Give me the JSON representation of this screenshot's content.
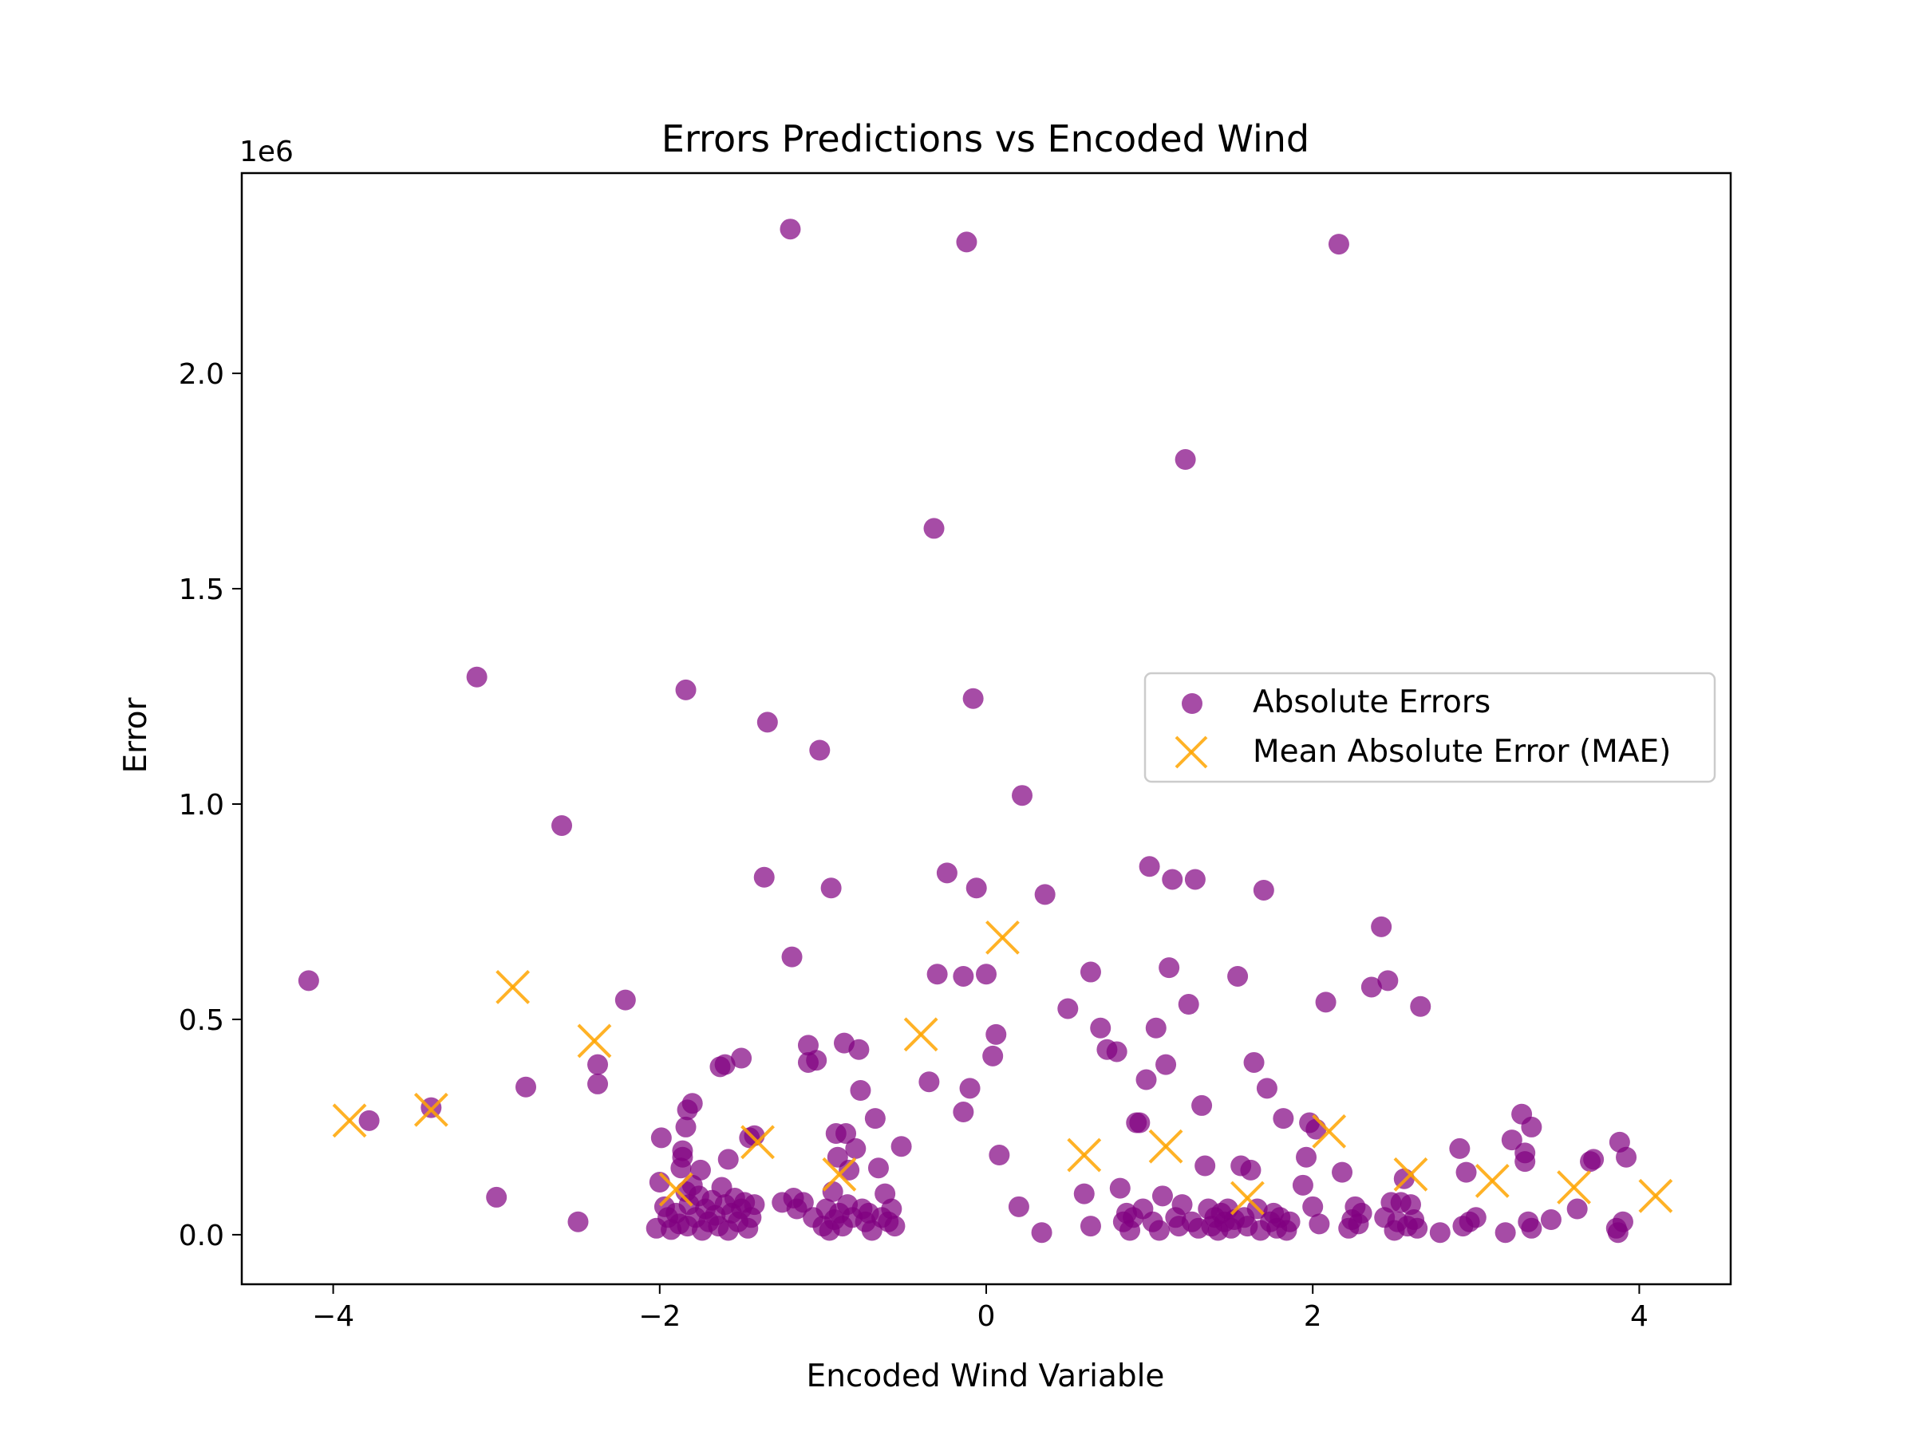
{
  "chart_data": {
    "type": "scatter",
    "title": "Errors Predictions vs Encoded Wind",
    "xlabel": "Encoded Wind Variable",
    "ylabel": "Error",
    "y_offset_label": "1e6",
    "xlim": [
      -4.56,
      4.56
    ],
    "ylim": [
      -0.115,
      2.465
    ],
    "x_ticks": [
      -4,
      -2,
      0,
      2,
      4
    ],
    "x_tick_labels": [
      "−4",
      "−2",
      "0",
      "2",
      "4"
    ],
    "y_ticks": [
      0.0,
      0.5,
      1.0,
      1.5,
      2.0
    ],
    "y_tick_labels": [
      "0.0",
      "0.5",
      "1.0",
      "1.5",
      "2.0"
    ],
    "grid": false,
    "legend_position": "center-right",
    "colors": {
      "absolute": "#800080",
      "mae": "#ffa500"
    },
    "series": [
      {
        "name": "Absolute Errors",
        "marker": "circle",
        "points": [
          [
            -4.15,
            0.59
          ],
          [
            -3.78,
            0.265
          ],
          [
            -3.4,
            0.295
          ],
          [
            -3.12,
            1.295
          ],
          [
            -3.0,
            0.087
          ],
          [
            -2.82,
            0.343
          ],
          [
            -2.6,
            0.95
          ],
          [
            -2.5,
            0.03
          ],
          [
            -2.38,
            0.395
          ],
          [
            -2.38,
            0.35
          ],
          [
            -2.21,
            0.545
          ],
          [
            -2.02,
            0.015
          ],
          [
            -2.0,
            0.122
          ],
          [
            -1.99,
            0.225
          ],
          [
            -1.97,
            0.065
          ],
          [
            -1.95,
            0.04
          ],
          [
            -1.93,
            0.012
          ],
          [
            -1.9,
            0.05
          ],
          [
            -1.88,
            0.025
          ],
          [
            -1.87,
            0.155
          ],
          [
            -1.86,
            0.195
          ],
          [
            -1.86,
            0.18
          ],
          [
            -1.84,
            0.1
          ],
          [
            -1.83,
            0.02
          ],
          [
            -1.82,
            0.07
          ],
          [
            -1.8,
            0.115
          ],
          [
            -1.78,
            0.04
          ],
          [
            -1.76,
            0.09
          ],
          [
            -1.74,
            0.01
          ],
          [
            -1.72,
            0.06
          ],
          [
            -1.7,
            0.03
          ],
          [
            -1.68,
            0.08
          ],
          [
            -1.66,
            0.045
          ],
          [
            -1.64,
            0.02
          ],
          [
            -1.62,
            0.11
          ],
          [
            -1.6,
            0.07
          ],
          [
            -1.58,
            0.01
          ],
          [
            -1.56,
            0.05
          ],
          [
            -1.54,
            0.085
          ],
          [
            -1.52,
            0.03
          ],
          [
            -1.5,
            0.06
          ],
          [
            -1.48,
            0.075
          ],
          [
            -1.46,
            0.015
          ],
          [
            -1.44,
            0.04
          ],
          [
            -1.42,
            0.07
          ],
          [
            -1.84,
            1.265
          ],
          [
            -1.84,
            0.25
          ],
          [
            -1.83,
            0.29
          ],
          [
            -1.8,
            0.305
          ],
          [
            -1.75,
            0.15
          ],
          [
            -1.63,
            0.39
          ],
          [
            -1.6,
            0.395
          ],
          [
            -1.58,
            0.175
          ],
          [
            -1.5,
            0.41
          ],
          [
            -1.45,
            0.225
          ],
          [
            -1.42,
            0.23
          ],
          [
            -1.36,
            0.83
          ],
          [
            -1.34,
            1.19
          ],
          [
            -1.25,
            0.075
          ],
          [
            -1.2,
            2.335
          ],
          [
            -1.19,
            0.645
          ],
          [
            -1.18,
            0.085
          ],
          [
            -1.16,
            0.06
          ],
          [
            -1.12,
            0.075
          ],
          [
            -1.09,
            0.44
          ],
          [
            -1.09,
            0.4
          ],
          [
            -1.06,
            0.04
          ],
          [
            -1.04,
            0.405
          ],
          [
            -1.02,
            1.125
          ],
          [
            -1.0,
            0.02
          ],
          [
            -0.98,
            0.06
          ],
          [
            -0.96,
            0.01
          ],
          [
            -0.95,
            0.805
          ],
          [
            -0.94,
            0.1
          ],
          [
            -0.93,
            0.035
          ],
          [
            -0.92,
            0.235
          ],
          [
            -0.91,
            0.18
          ],
          [
            -0.9,
            0.05
          ],
          [
            -0.88,
            0.02
          ],
          [
            -0.87,
            0.445
          ],
          [
            -0.86,
            0.235
          ],
          [
            -0.85,
            0.07
          ],
          [
            -0.84,
            0.15
          ],
          [
            -0.82,
            0.04
          ],
          [
            -0.8,
            0.2
          ],
          [
            -0.78,
            0.43
          ],
          [
            -0.77,
            0.335
          ],
          [
            -0.76,
            0.06
          ],
          [
            -0.74,
            0.03
          ],
          [
            -0.72,
            0.05
          ],
          [
            -0.7,
            0.01
          ],
          [
            -0.68,
            0.27
          ],
          [
            -0.66,
            0.155
          ],
          [
            -0.64,
            0.04
          ],
          [
            -0.62,
            0.095
          ],
          [
            -0.6,
            0.03
          ],
          [
            -0.58,
            0.06
          ],
          [
            -0.56,
            0.02
          ],
          [
            -0.52,
            0.205
          ],
          [
            -0.35,
            0.355
          ],
          [
            -0.32,
            1.64
          ],
          [
            -0.3,
            0.605
          ],
          [
            -0.24,
            0.84
          ],
          [
            -0.14,
            0.6
          ],
          [
            -0.14,
            0.285
          ],
          [
            -0.12,
            2.305
          ],
          [
            -0.1,
            0.34
          ],
          [
            -0.08,
            1.245
          ],
          [
            -0.06,
            0.805
          ],
          [
            0.0,
            0.605
          ],
          [
            0.04,
            0.415
          ],
          [
            0.06,
            0.465
          ],
          [
            0.08,
            0.185
          ],
          [
            0.2,
            0.065
          ],
          [
            0.22,
            1.02
          ],
          [
            0.34,
            0.005
          ],
          [
            0.36,
            0.79
          ],
          [
            0.5,
            0.525
          ],
          [
            0.6,
            0.095
          ],
          [
            0.64,
            0.61
          ],
          [
            0.64,
            0.02
          ],
          [
            0.7,
            0.48
          ],
          [
            0.74,
            0.43
          ],
          [
            0.8,
            0.425
          ],
          [
            0.82,
            0.108
          ],
          [
            0.84,
            0.03
          ],
          [
            0.86,
            0.05
          ],
          [
            0.88,
            0.01
          ],
          [
            0.9,
            0.04
          ],
          [
            0.92,
            0.26
          ],
          [
            0.94,
            0.26
          ],
          [
            0.96,
            0.06
          ],
          [
            0.98,
            0.36
          ],
          [
            1.0,
            0.855
          ],
          [
            1.02,
            0.03
          ],
          [
            1.04,
            0.48
          ],
          [
            1.06,
            0.01
          ],
          [
            1.08,
            0.09
          ],
          [
            1.1,
            0.395
          ],
          [
            1.12,
            0.62
          ],
          [
            1.14,
            0.825
          ],
          [
            1.16,
            0.04
          ],
          [
            1.18,
            0.02
          ],
          [
            1.2,
            0.07
          ],
          [
            1.22,
            1.8
          ],
          [
            1.24,
            0.535
          ],
          [
            1.26,
            0.03
          ],
          [
            1.28,
            0.825
          ],
          [
            1.3,
            0.015
          ],
          [
            1.32,
            0.3
          ],
          [
            1.34,
            0.16
          ],
          [
            1.36,
            0.06
          ],
          [
            1.38,
            0.02
          ],
          [
            1.4,
            0.04
          ],
          [
            1.42,
            0.01
          ],
          [
            1.44,
            0.05
          ],
          [
            1.46,
            0.03
          ],
          [
            1.48,
            0.06
          ],
          [
            1.5,
            0.015
          ],
          [
            1.52,
            0.035
          ],
          [
            1.54,
            0.6
          ],
          [
            1.56,
            0.16
          ],
          [
            1.58,
            0.04
          ],
          [
            1.6,
            0.02
          ],
          [
            1.62,
            0.15
          ],
          [
            1.64,
            0.4
          ],
          [
            1.66,
            0.06
          ],
          [
            1.68,
            0.01
          ],
          [
            1.7,
            0.8
          ],
          [
            1.72,
            0.34
          ],
          [
            1.74,
            0.03
          ],
          [
            1.76,
            0.05
          ],
          [
            1.78,
            0.015
          ],
          [
            1.8,
            0.04
          ],
          [
            1.82,
            0.27
          ],
          [
            1.84,
            0.01
          ],
          [
            1.86,
            0.03
          ],
          [
            1.94,
            0.115
          ],
          [
            1.96,
            0.18
          ],
          [
            1.98,
            0.26
          ],
          [
            2.0,
            0.065
          ],
          [
            2.02,
            0.245
          ],
          [
            2.04,
            0.025
          ],
          [
            2.08,
            0.54
          ],
          [
            2.16,
            2.3
          ],
          [
            2.18,
            0.145
          ],
          [
            2.22,
            0.015
          ],
          [
            2.24,
            0.035
          ],
          [
            2.26,
            0.065
          ],
          [
            2.28,
            0.025
          ],
          [
            2.3,
            0.05
          ],
          [
            2.36,
            0.575
          ],
          [
            2.42,
            0.715
          ],
          [
            2.44,
            0.04
          ],
          [
            2.46,
            0.59
          ],
          [
            2.48,
            0.075
          ],
          [
            2.5,
            0.01
          ],
          [
            2.52,
            0.03
          ],
          [
            2.54,
            0.075
          ],
          [
            2.56,
            0.13
          ],
          [
            2.58,
            0.02
          ],
          [
            2.6,
            0.07
          ],
          [
            2.62,
            0.035
          ],
          [
            2.64,
            0.015
          ],
          [
            2.66,
            0.53
          ],
          [
            2.78,
            0.005
          ],
          [
            2.9,
            0.2
          ],
          [
            2.92,
            0.02
          ],
          [
            2.94,
            0.145
          ],
          [
            2.96,
            0.03
          ],
          [
            3.0,
            0.04
          ],
          [
            3.18,
            0.005
          ],
          [
            3.22,
            0.22
          ],
          [
            3.28,
            0.28
          ],
          [
            3.3,
            0.19
          ],
          [
            3.3,
            0.17
          ],
          [
            3.32,
            0.03
          ],
          [
            3.34,
            0.015
          ],
          [
            3.34,
            0.25
          ],
          [
            3.46,
            0.035
          ],
          [
            3.62,
            0.06
          ],
          [
            3.7,
            0.17
          ],
          [
            3.72,
            0.175
          ],
          [
            3.86,
            0.015
          ],
          [
            3.87,
            0.005
          ],
          [
            3.88,
            0.215
          ],
          [
            3.9,
            0.03
          ],
          [
            3.92,
            0.18
          ]
        ]
      },
      {
        "name": "Mean Absolute Error (MAE)",
        "marker": "x",
        "points": [
          [
            -3.9,
            0.265
          ],
          [
            -3.4,
            0.29
          ],
          [
            -2.9,
            0.575
          ],
          [
            -2.4,
            0.45
          ],
          [
            -1.9,
            0.105
          ],
          [
            -1.4,
            0.215
          ],
          [
            -0.9,
            0.14
          ],
          [
            -0.4,
            0.465
          ],
          [
            0.1,
            0.69
          ],
          [
            0.6,
            0.185
          ],
          [
            1.1,
            0.205
          ],
          [
            1.6,
            0.085
          ],
          [
            2.1,
            0.24
          ],
          [
            2.6,
            0.14
          ],
          [
            3.1,
            0.125
          ],
          [
            3.6,
            0.11
          ],
          [
            4.1,
            0.09
          ]
        ]
      }
    ]
  }
}
